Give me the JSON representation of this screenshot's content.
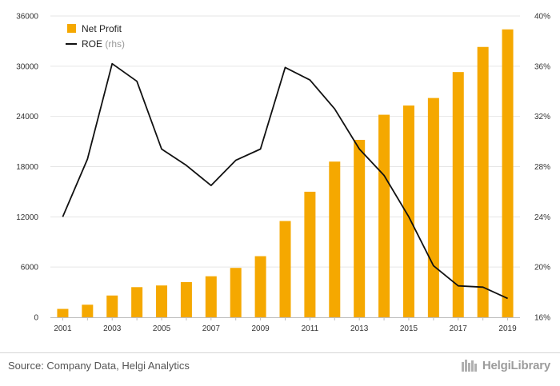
{
  "chart_data": {
    "type": "bar+line",
    "categories": [
      "2001",
      "2002",
      "2003",
      "2004",
      "2005",
      "2006",
      "2007",
      "2008",
      "2009",
      "2010",
      "2011",
      "2012",
      "2013",
      "2014",
      "2015",
      "2016",
      "2017",
      "2018",
      "2019"
    ],
    "x_tick_labels": [
      "2001",
      "2003",
      "2005",
      "2007",
      "2009",
      "2011",
      "2013",
      "2015",
      "2017",
      "2019"
    ],
    "series": [
      {
        "name": "Net Profit",
        "type": "bar",
        "axis": "left",
        "color": "#f5a800",
        "values": [
          1000,
          1500,
          2600,
          3600,
          3800,
          4200,
          4900,
          5900,
          7300,
          11500,
          15000,
          18600,
          21200,
          24200,
          25300,
          26200,
          29300,
          32300,
          34400
        ]
      },
      {
        "name": "ROE",
        "name_suffix": "(rhs)",
        "type": "line",
        "axis": "right",
        "color": "#111111",
        "values": [
          24.0,
          28.6,
          36.2,
          34.8,
          29.4,
          28.1,
          26.5,
          28.5,
          29.4,
          35.9,
          34.9,
          32.6,
          29.4,
          27.3,
          24.0,
          20.1,
          18.5,
          18.4,
          17.5
        ]
      }
    ],
    "y_left": {
      "min": 0,
      "max": 36000,
      "ticks": [
        "0",
        "6000",
        "12000",
        "18000",
        "24000",
        "30000",
        "36000"
      ],
      "tick_values": [
        0,
        6000,
        12000,
        18000,
        24000,
        30000,
        36000
      ]
    },
    "y_right": {
      "min": 16,
      "max": 40,
      "ticks": [
        "16%",
        "20%",
        "24%",
        "28%",
        "32%",
        "36%",
        "40%"
      ],
      "tick_values": [
        16,
        20,
        24,
        28,
        32,
        36,
        40
      ]
    },
    "legend_position": "top-left",
    "gridlines": true
  },
  "legend": {
    "net_profit": "Net Profit",
    "roe": "ROE",
    "roe_suffix": "(rhs)"
  },
  "footer": {
    "source": "Source: Company Data, Helgi Analytics",
    "logo_text": "HelgiLibrary"
  }
}
